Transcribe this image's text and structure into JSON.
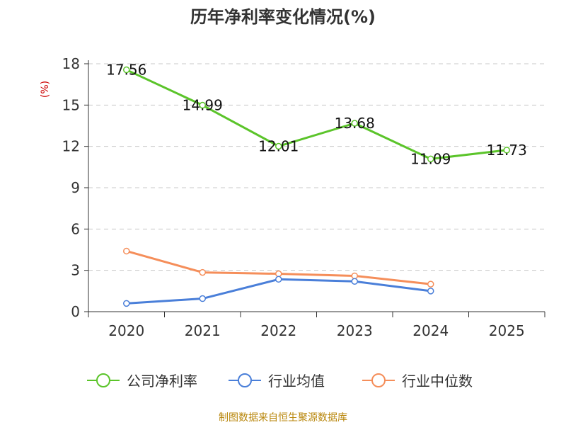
{
  "chart_data": {
    "type": "line",
    "title": "历年净利率变化情况(%)",
    "ylabel": "(%)",
    "xlabel": "",
    "categories": [
      "2020",
      "2021",
      "2022",
      "2023",
      "2024",
      "2025"
    ],
    "yticks": [
      "0",
      "3",
      "6",
      "9",
      "12",
      "15",
      "18"
    ],
    "ylim": [
      0,
      18
    ],
    "grid": true,
    "legend_position": "bottom",
    "series": [
      {
        "name": "公司净利率",
        "color": "#5bc42a",
        "values": [
          17.56,
          14.99,
          12.01,
          13.68,
          11.09,
          11.73
        ],
        "labels": [
          "17.56",
          "14.99",
          "12.01",
          "13.68",
          "11.09",
          "11.73"
        ]
      },
      {
        "name": "行业均值",
        "color": "#4a7fd9",
        "values": [
          0.6,
          0.95,
          2.35,
          2.2,
          1.5,
          null
        ]
      },
      {
        "name": "行业中位数",
        "color": "#f58e5a",
        "values": [
          4.4,
          2.85,
          2.75,
          2.6,
          2.0,
          null
        ]
      }
    ]
  },
  "source_text": "制图数据来自恒生聚源数据库"
}
